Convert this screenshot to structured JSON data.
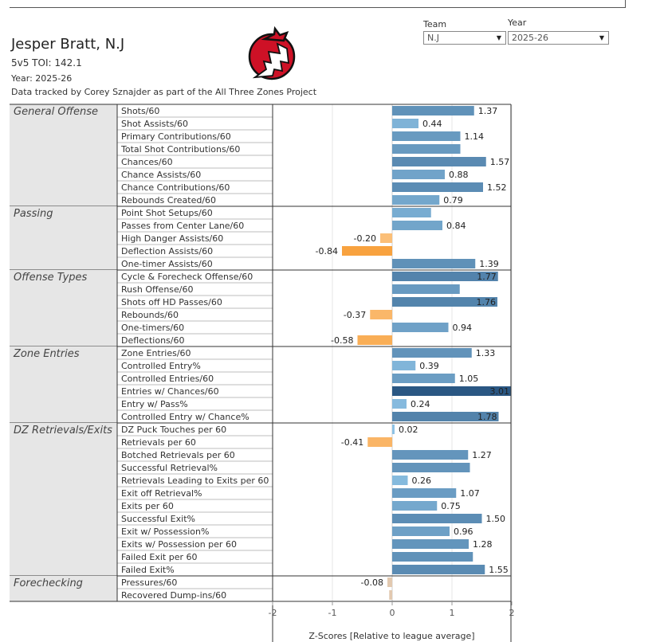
{
  "header": {
    "player": "Jesper Bratt, N.J",
    "toi": "5v5 TOI: 142.1",
    "year": "Year: 2025-26",
    "source": "Data tracked by Corey Sznajder as part of the All Three Zones Project"
  },
  "filters": {
    "team_label": "Team",
    "team_value": "N.J",
    "year_label": "Year",
    "year_value": "2025-26"
  },
  "logo": {
    "icon": "new-jersey-devils-logo",
    "color": "#ce1126",
    "outline": "#111111"
  },
  "colors": {
    "positive_light": "#8ec3e6",
    "positive_dark": "#2a5783",
    "negative_light": "#fcc88a",
    "negative_dark": "#f89f3a",
    "near_zero_negative": "#e2c9b0"
  },
  "chart_data": {
    "type": "bar",
    "orientation": "horizontal",
    "xlabel": "Z-Scores [Relative to league average]",
    "xlim": [
      -2,
      2
    ],
    "xticks": [
      -2,
      -1,
      0,
      1,
      2
    ],
    "grid": "vertical",
    "groups": [
      {
        "name": "General Offense",
        "rows": [
          {
            "label": "Shots/60",
            "value": 1.37,
            "show_label": true
          },
          {
            "label": "Shot Assists/60",
            "value": 0.44,
            "show_label": true
          },
          {
            "label": "Primary Contributions/60",
            "value": 1.14,
            "show_label": true
          },
          {
            "label": "Total Shot Contributions/60",
            "value": 1.14,
            "show_label": false
          },
          {
            "label": "Chances/60",
            "value": 1.57,
            "show_label": true
          },
          {
            "label": "Chance Assists/60",
            "value": 0.88,
            "show_label": true
          },
          {
            "label": "Chance Contributions/60",
            "value": 1.52,
            "show_label": true
          },
          {
            "label": "Rebounds Created/60",
            "value": 0.79,
            "show_label": true
          }
        ]
      },
      {
        "name": "Passing",
        "rows": [
          {
            "label": "Point Shot Setups/60",
            "value": 0.65,
            "show_label": false
          },
          {
            "label": "Passes from Center Lane/60",
            "value": 0.84,
            "show_label": true
          },
          {
            "label": "High Danger Assists/60",
            "value": -0.2,
            "show_label": true
          },
          {
            "label": "Deflection Assists/60",
            "value": -0.84,
            "show_label": true
          },
          {
            "label": "One-timer Assists/60",
            "value": 1.39,
            "show_label": true
          }
        ]
      },
      {
        "name": "Offense Types",
        "rows": [
          {
            "label": "Cycle & Forecheck Offense/60",
            "value": 1.77,
            "show_label": true
          },
          {
            "label": "Rush Offense/60",
            "value": 1.13,
            "show_label": false
          },
          {
            "label": "Shots off HD Passes/60",
            "value": 1.76,
            "show_label": true
          },
          {
            "label": "Rebounds/60",
            "value": -0.37,
            "show_label": true
          },
          {
            "label": "One-timers/60",
            "value": 0.94,
            "show_label": true
          },
          {
            "label": "Deflections/60",
            "value": -0.58,
            "show_label": true
          }
        ]
      },
      {
        "name": "Zone Entries",
        "rows": [
          {
            "label": "Zone Entries/60",
            "value": 1.33,
            "show_label": true
          },
          {
            "label": "Controlled Entry%",
            "value": 0.39,
            "show_label": true
          },
          {
            "label": "Controlled Entries/60",
            "value": 1.05,
            "show_label": true
          },
          {
            "label": "Entries w/ Chances/60",
            "value": 3.01,
            "show_label": true
          },
          {
            "label": "Entry w/ Pass%",
            "value": 0.24,
            "show_label": true
          },
          {
            "label": "Controlled Entry w/ Chance%",
            "value": 1.78,
            "show_label": true
          }
        ]
      },
      {
        "name": "DZ Retrievals/Exits",
        "rows": [
          {
            "label": "DZ Puck Touches per 60",
            "value": 0.02,
            "show_label": true
          },
          {
            "label": "Retrievals per 60",
            "value": -0.41,
            "show_label": true
          },
          {
            "label": "Botched Retrievals per 60",
            "value": 1.27,
            "show_label": true
          },
          {
            "label": "Successful Retrieval%",
            "value": 1.3,
            "show_label": false
          },
          {
            "label": "Retrievals Leading to Exits per 60",
            "value": 0.26,
            "show_label": true
          },
          {
            "label": "Exit off Retrieval%",
            "value": 1.07,
            "show_label": true
          },
          {
            "label": "Exits per 60",
            "value": 0.75,
            "show_label": true
          },
          {
            "label": "Successful Exit%",
            "value": 1.5,
            "show_label": true
          },
          {
            "label": "Exit w/ Possession%",
            "value": 0.96,
            "show_label": true
          },
          {
            "label": "Exits w/ Possession per 60",
            "value": 1.28,
            "show_label": true
          },
          {
            "label": "Failed Exit per 60",
            "value": 1.35,
            "show_label": false
          },
          {
            "label": "Failed Exit%",
            "value": 1.55,
            "show_label": true
          }
        ]
      },
      {
        "name": "Forechecking",
        "rows": [
          {
            "label": "Pressures/60",
            "value": -0.08,
            "show_label": true
          },
          {
            "label": "Recovered Dump-ins/60",
            "value": -0.05,
            "show_label": false
          }
        ]
      }
    ]
  }
}
